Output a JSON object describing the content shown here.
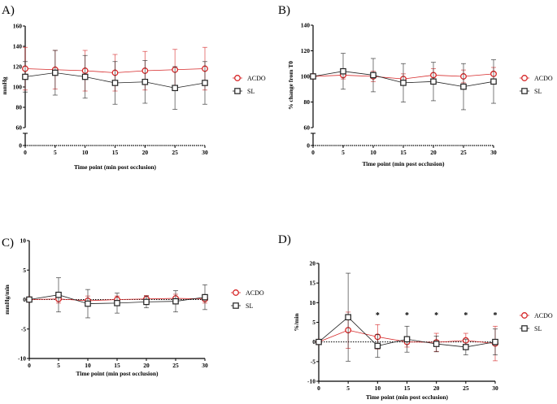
{
  "colors": {
    "ACDO": "#d62728",
    "SL": "#222222",
    "axis": "#000000"
  },
  "chart_data": [
    {
      "panel": "A)",
      "type": "line",
      "xlabel": "Time point (min post occlusion)",
      "ylabel": "mmHg",
      "x": [
        0,
        5,
        10,
        15,
        20,
        25,
        30
      ],
      "xticks": [
        0,
        5,
        10,
        15,
        20,
        25,
        30
      ],
      "xlim": [
        0,
        30
      ],
      "ylim": [
        0,
        160
      ],
      "axis_break": [
        0,
        60
      ],
      "yticks": [
        0,
        60,
        80,
        100,
        120,
        140,
        160
      ],
      "legend": "right",
      "series": [
        {
          "name": "ACDO",
          "marker": "circle",
          "values": [
            118,
            117,
            116,
            114,
            116,
            117,
            118
          ],
          "error": [
            21,
            19,
            20,
            18,
            19,
            20,
            21
          ]
        },
        {
          "name": "SL",
          "marker": "square",
          "values": [
            110,
            114,
            110,
            104,
            105,
            99,
            104
          ],
          "error": [
            15,
            22,
            21,
            21,
            21,
            21,
            21
          ]
        }
      ],
      "annotations": []
    },
    {
      "panel": "B)",
      "type": "line",
      "xlabel": "Time point (min post occlusion)",
      "ylabel": "% change from T0",
      "x": [
        0,
        5,
        10,
        15,
        20,
        25,
        30
      ],
      "xticks": [
        0,
        5,
        10,
        15,
        20,
        25,
        30
      ],
      "xlim": [
        0,
        30
      ],
      "ylim": [
        0,
        140
      ],
      "axis_break": [
        0,
        60
      ],
      "yticks": [
        0,
        60,
        80,
        100,
        120,
        140
      ],
      "legend": "right",
      "series": [
        {
          "name": "ACDO",
          "marker": "circle",
          "values": [
            100,
            101,
            100,
            98,
            101,
            100,
            102
          ],
          "error": [
            0,
            3,
            4,
            4,
            5,
            5,
            5
          ]
        },
        {
          "name": "SL",
          "marker": "square",
          "values": [
            100,
            104,
            101,
            95,
            96,
            92,
            96
          ],
          "error": [
            0,
            14,
            13,
            15,
            15,
            18,
            17
          ]
        }
      ],
      "annotations": []
    },
    {
      "panel": "C)",
      "type": "line",
      "xlabel": "Time point (min post occlusion)",
      "ylabel": "mmHg/min",
      "x": [
        0,
        5,
        10,
        15,
        20,
        25,
        30
      ],
      "xticks": [
        0,
        5,
        10,
        15,
        20,
        25,
        30
      ],
      "xlim": [
        0,
        30
      ],
      "ylim": [
        -10,
        10
      ],
      "yticks": [
        -10,
        -5,
        0,
        5,
        10
      ],
      "zero_line": "dotted",
      "legend": "right",
      "series": [
        {
          "name": "ACDO",
          "marker": "circle",
          "values": [
            0,
            0.1,
            -0.2,
            0,
            0.1,
            0.2,
            0.1
          ],
          "error": [
            0,
            0.7,
            0.8,
            0.6,
            0.6,
            0.7,
            0.7
          ]
        },
        {
          "name": "SL",
          "marker": "square",
          "values": [
            0,
            0.8,
            -0.7,
            -0.6,
            -0.4,
            -0.3,
            0.4
          ],
          "error": [
            0,
            2.9,
            2.4,
            1.7,
            1.0,
            1.8,
            2.1
          ]
        }
      ],
      "annotations": []
    },
    {
      "panel": "D)",
      "type": "line",
      "xlabel": "Time point (min post occlusion)",
      "ylabel": "%/min",
      "x": [
        0,
        5,
        10,
        15,
        20,
        25,
        30
      ],
      "xticks": [
        0,
        5,
        10,
        15,
        20,
        25,
        30
      ],
      "xlim": [
        0,
        30
      ],
      "ylim": [
        -10,
        20
      ],
      "yticks": [
        -10,
        -5,
        0,
        5,
        10,
        15,
        20
      ],
      "zero_line": "dotted",
      "legend": "right",
      "series": [
        {
          "name": "ACDO",
          "marker": "circle",
          "values": [
            0,
            3,
            1.3,
            0,
            -0.1,
            0.4,
            -0.4
          ],
          "error": [
            0,
            4.6,
            3.1,
            1.3,
            2.3,
            1.8,
            4.4
          ]
        },
        {
          "name": "SL",
          "marker": "square",
          "values": [
            0,
            6.3,
            -1,
            0.7,
            -0.5,
            -1.3,
            0
          ],
          "error": [
            0,
            11.2,
            2.9,
            3.3,
            2.0,
            2.0,
            3.3
          ]
        }
      ],
      "annotations": [
        {
          "x": 10,
          "y": 7,
          "text": "*"
        },
        {
          "x": 15,
          "y": 7,
          "text": "*"
        },
        {
          "x": 20,
          "y": 7,
          "text": "*"
        },
        {
          "x": 25,
          "y": 7,
          "text": "*"
        },
        {
          "x": 30,
          "y": 7,
          "text": "*"
        }
      ]
    }
  ]
}
